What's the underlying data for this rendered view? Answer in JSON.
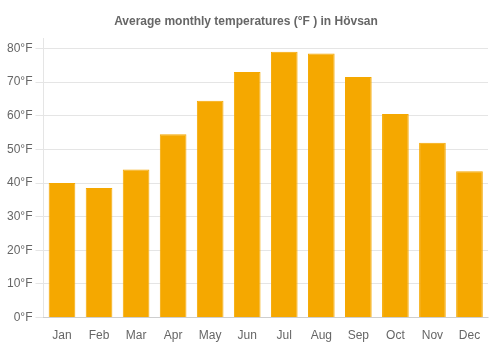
{
  "chart_data": {
    "type": "bar",
    "title": "Average monthly temperatures (°F ) in Hövsan",
    "categories": [
      "Jan",
      "Feb",
      "Mar",
      "Apr",
      "May",
      "Jun",
      "Jul",
      "Aug",
      "Sep",
      "Oct",
      "Nov",
      "Dec"
    ],
    "values": [
      40,
      38.5,
      44,
      54.5,
      64.5,
      73,
      79,
      78.5,
      71.5,
      60.5,
      52,
      43.5
    ],
    "color": "#F5A800",
    "ylim": [
      0,
      83
    ],
    "yticks": [
      {
        "value": 0,
        "label": "0°F"
      },
      {
        "value": 10,
        "label": "10°F"
      },
      {
        "value": 20,
        "label": "20°F"
      },
      {
        "value": 30,
        "label": "30°F"
      },
      {
        "value": 40,
        "label": "40°F"
      },
      {
        "value": 50,
        "label": "50°F"
      },
      {
        "value": 60,
        "label": "60°F"
      },
      {
        "value": 70,
        "label": "70°F"
      },
      {
        "value": 80,
        "label": "80°F"
      }
    ],
    "grid": true
  }
}
